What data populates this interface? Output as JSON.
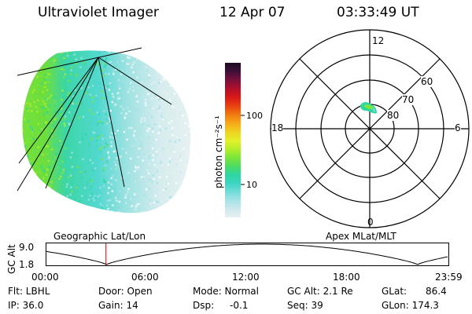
{
  "header": {
    "instrument": "Ultraviolet Imager",
    "date": "12 Apr 07",
    "time": "03:33:49 UT"
  },
  "colorbar": {
    "unit_label": "photon cm⁻²s⁻¹",
    "ticks": [
      {
        "label": "100",
        "value": 100
      },
      {
        "label": "10",
        "value": 10
      }
    ],
    "log_min": 2.5,
    "log_max": 700,
    "palette": [
      "#e8f0f2",
      "#cce8ec",
      "#a6e2e6",
      "#6fdcd8",
      "#3ad4c2",
      "#2fd6a0",
      "#4fdc62",
      "#7ee63a",
      "#b6ee2a",
      "#e6f02a",
      "#f0d020",
      "#f6a818",
      "#f07810",
      "#e84010",
      "#d81818",
      "#b0102c",
      "#78103c",
      "#401038",
      "#1a0a20"
    ]
  },
  "geo_panel": {
    "label": "Geographic Lat/Lon"
  },
  "polar_panel": {
    "label": "Apex MLat/MLT",
    "mlt_labels": [
      "12",
      "18",
      "6",
      "0"
    ],
    "lat_labels": [
      "60",
      "70",
      "80"
    ]
  },
  "timeline": {
    "ylabel": "GC Alt",
    "y_ticks": [
      "9.0",
      "1.8"
    ],
    "x_ticks": [
      "00:00",
      "06:00",
      "12:00",
      "18:00",
      "23:59"
    ],
    "current_time_hours": 3.56,
    "series_color": "#000000",
    "marker_color": "#cc0000"
  },
  "info": {
    "flt": "Flt: LBHL",
    "ip": "IP: 36.0",
    "door": "Door: Open",
    "gain": "Gain: 14",
    "mode": "Mode: Normal",
    "dsp": "Dsp:",
    "dsp_value": "-0.1",
    "gc_alt": "GC Alt: 2.1 Re",
    "seq": "Seq: 39",
    "glat": "GLat:",
    "glat_value": "86.4",
    "glon": "GLon: 174.3"
  }
}
